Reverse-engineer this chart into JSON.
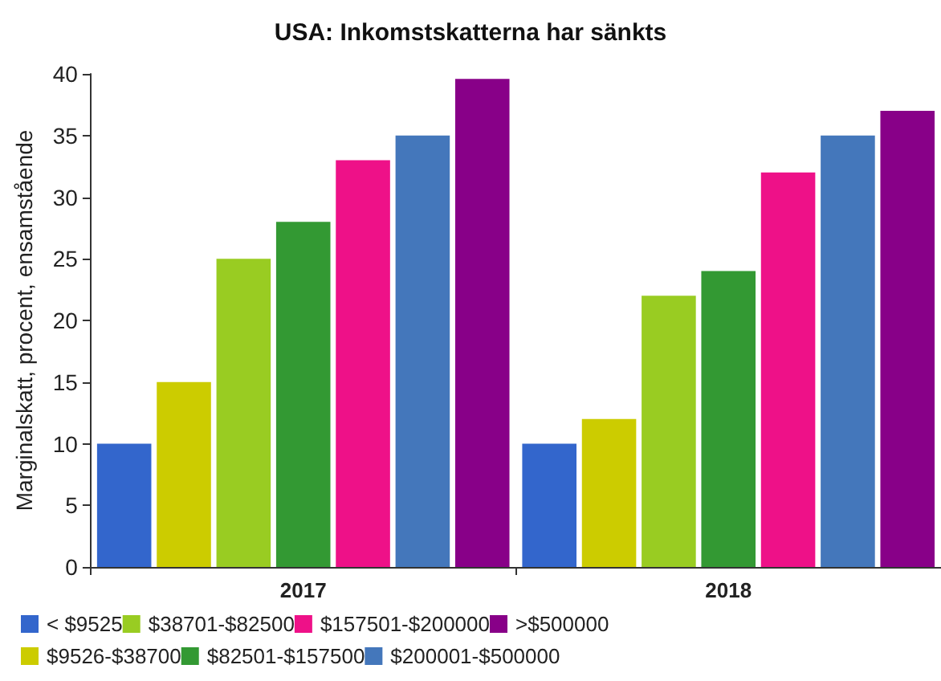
{
  "chart_data": {
    "type": "bar",
    "title": "USA: Inkomstskatterna har sänkts",
    "ylabel": "Marginalskatt, procent, ensamstående",
    "categories": [
      "2017",
      "2018"
    ],
    "series": [
      {
        "name": "< $9525",
        "color": "#3366cc",
        "values": [
          10,
          10
        ]
      },
      {
        "name": "$9526-$38700",
        "color": "#cccc00",
        "values": [
          15,
          12
        ]
      },
      {
        "name": "$38701-$82500",
        "color": "#99cc22",
        "values": [
          25,
          22
        ]
      },
      {
        "name": "$82501-$157500",
        "color": "#339933",
        "values": [
          28,
          24
        ]
      },
      {
        "name": "$157501-$200000",
        "color": "#ee1188",
        "values": [
          33,
          32
        ]
      },
      {
        "name": "$200001-$500000",
        "color": "#4477bb",
        "values": [
          35,
          35
        ]
      },
      {
        "name": ">$500000",
        "color": "#880088",
        "values": [
          39.6,
          37
        ]
      }
    ],
    "ylim": [
      0,
      40
    ],
    "yticks": [
      0,
      5,
      10,
      15,
      20,
      25,
      30,
      35,
      40
    ],
    "grid": false,
    "legend": "bottom"
  }
}
